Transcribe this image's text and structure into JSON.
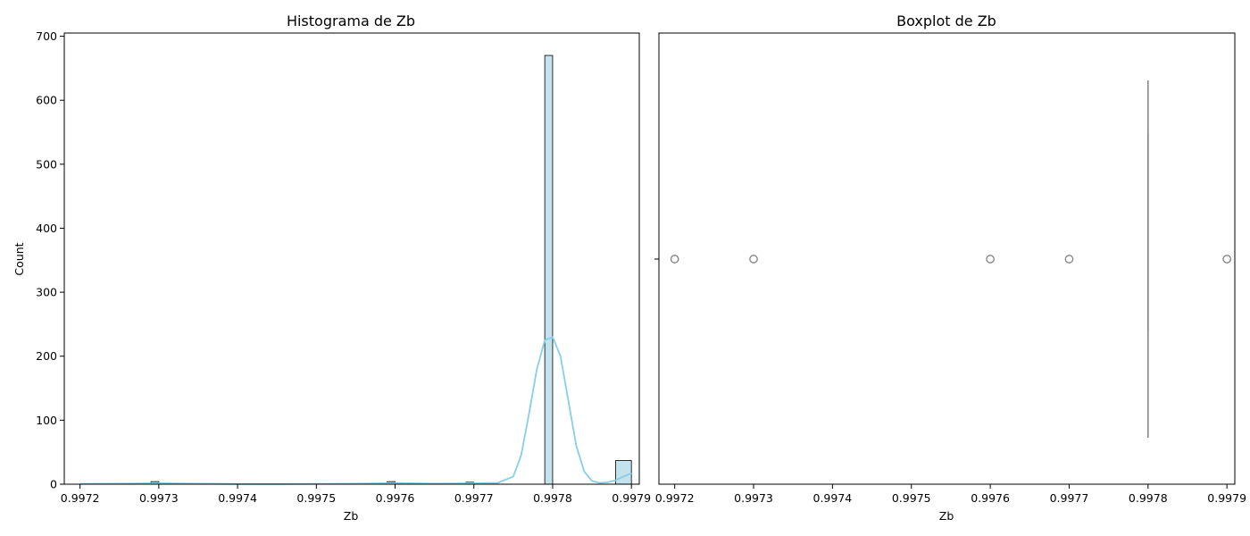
{
  "chart_data": [
    {
      "type": "histogram",
      "title": "Histograma de Zb",
      "xlabel": "Zb",
      "ylabel": "Count",
      "xlim": [
        0.99718,
        0.99791
      ],
      "ylim": [
        0,
        705
      ],
      "xticks": [
        0.9972,
        0.9973,
        0.9974,
        0.9975,
        0.9976,
        0.9977,
        0.9978,
        0.9979
      ],
      "xtick_labels": [
        "0.9972",
        "0.9973",
        "0.9974",
        "0.9975",
        "0.9976",
        "0.9977",
        "0.9978",
        "0.9979"
      ],
      "yticks": [
        0,
        100,
        200,
        300,
        400,
        500,
        600,
        700
      ],
      "ytick_labels": [
        "0",
        "100",
        "200",
        "300",
        "400",
        "500",
        "600",
        "700"
      ],
      "bar_color": "#add8e6",
      "bar_edge_color": "#000000",
      "bins": [
        {
          "x0": 0.99729,
          "x1": 0.9973,
          "count": 4
        },
        {
          "x0": 0.99759,
          "x1": 0.9976,
          "count": 4
        },
        {
          "x0": 0.99769,
          "x1": 0.9977,
          "count": 3
        },
        {
          "x0": 0.99779,
          "x1": 0.9978,
          "count": 670
        },
        {
          "x0": 0.99788,
          "x1": 0.9979,
          "count": 37
        }
      ],
      "kde": {
        "color": "#87ceeb",
        "x": [
          0.9972,
          0.99725,
          0.9973,
          0.99735,
          0.9974,
          0.99745,
          0.9975,
          0.99755,
          0.9976,
          0.99765,
          0.9977,
          0.99773,
          0.99775,
          0.99776,
          0.99777,
          0.99778,
          0.99779,
          0.9978,
          0.99781,
          0.99782,
          0.99783,
          0.99784,
          0.99785,
          0.99786,
          0.99787,
          0.99788,
          0.99789,
          0.9979
        ],
        "y": [
          0.5,
          0.8,
          1.5,
          0.8,
          0.3,
          0.3,
          0.5,
          0.8,
          1.8,
          1.0,
          1.5,
          2,
          12,
          45,
          110,
          180,
          225,
          230,
          200,
          130,
          60,
          20,
          5,
          2,
          3,
          6,
          12,
          17
        ]
      }
    },
    {
      "type": "boxplot",
      "title": "Boxplot de Zb",
      "xlabel": "Zb",
      "xlim": [
        0.99718,
        0.99791
      ],
      "xticks": [
        0.9972,
        0.9973,
        0.9974,
        0.9975,
        0.9976,
        0.9977,
        0.9978,
        0.9979
      ],
      "xtick_labels": [
        "0.9972",
        "0.9973",
        "0.9974",
        "0.9975",
        "0.9976",
        "0.9977",
        "0.9978",
        "0.9979"
      ],
      "box_color": "#808080",
      "q1": 0.9978,
      "median": 0.9978,
      "q3": 0.9978,
      "whisker_low": 0.9978,
      "whisker_high": 0.9978,
      "outliers": [
        0.9972,
        0.9973,
        0.9976,
        0.9977,
        0.9979
      ]
    }
  ]
}
